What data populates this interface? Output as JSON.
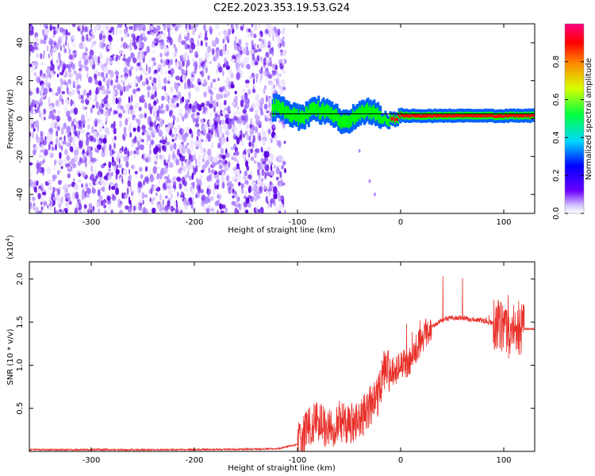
{
  "title": "C2E2.2023.353.19.53.G24",
  "colors": {
    "snr_line": "#e8302a",
    "noise": "#6a00e0",
    "signal_core": "#ff0000",
    "signal_mid": "#00ff00",
    "signal_edge": "#0060ff"
  },
  "chart_data": [
    {
      "type": "heatmap",
      "title": "C2E2.2023.353.19.53.G24",
      "xlabel": "Height of straight line (km)",
      "ylabel": "Frequency (Hz)",
      "xlim": [
        -360,
        130
      ],
      "ylim": [
        -50,
        50
      ],
      "xticks": [
        "-300",
        "-200",
        "-100",
        "0",
        "100"
      ],
      "yticks": [
        "-40",
        "-20",
        "0",
        "20",
        "40"
      ],
      "colorbar": {
        "label": "Normalized spectral amplitude",
        "range": [
          0,
          1
        ],
        "ticks": [
          "0.0",
          "0.2",
          "0.4",
          "0.6",
          "0.8"
        ],
        "colormap": "rainbow"
      },
      "regions": [
        {
          "name": "noise",
          "x_range": [
            -360,
            -112
          ],
          "f_range": [
            -50,
            50
          ],
          "amplitude": 0.1
        },
        {
          "name": "signal",
          "x_range": [
            -125,
            130
          ],
          "centre_freq_hz": 1.5,
          "amplitude": 0.9
        }
      ],
      "reference_line_freq_hz": 2.5
    },
    {
      "type": "line",
      "xlabel": "Height of straight line (km)",
      "ylabel": "SNR (10 * v/v)",
      "y_multiplier": "(x10",
      "y_multiplier_exp": "4",
      "y_multiplier_close": ")",
      "xlim": [
        -360,
        130
      ],
      "ylim": [
        0,
        2.2
      ],
      "xticks": [
        "-300",
        "-200",
        "-100",
        "0",
        "100"
      ],
      "yticks": [
        "0.5",
        "1.0",
        "1.5",
        "2.0"
      ],
      "series": [
        {
          "x": [
            -360,
            -300,
            -200,
            -120,
            -100,
            -90,
            -80,
            -70,
            -60,
            -50,
            -40,
            -30,
            -20,
            -15,
            -10,
            0,
            10,
            20,
            30,
            40,
            50,
            60,
            70,
            80,
            90,
            100,
            105,
            110,
            115,
            120,
            130
          ],
          "y": [
            0.02,
            0.02,
            0.02,
            0.03,
            0.08,
            0.25,
            0.35,
            0.25,
            0.35,
            0.3,
            0.35,
            0.5,
            0.7,
            1.0,
            0.9,
            1.0,
            1.05,
            1.3,
            1.45,
            1.52,
            1.55,
            1.55,
            1.53,
            1.52,
            1.48,
            1.45,
            1.3,
            1.45,
            1.4,
            1.42,
            1.42
          ]
        }
      ]
    }
  ]
}
